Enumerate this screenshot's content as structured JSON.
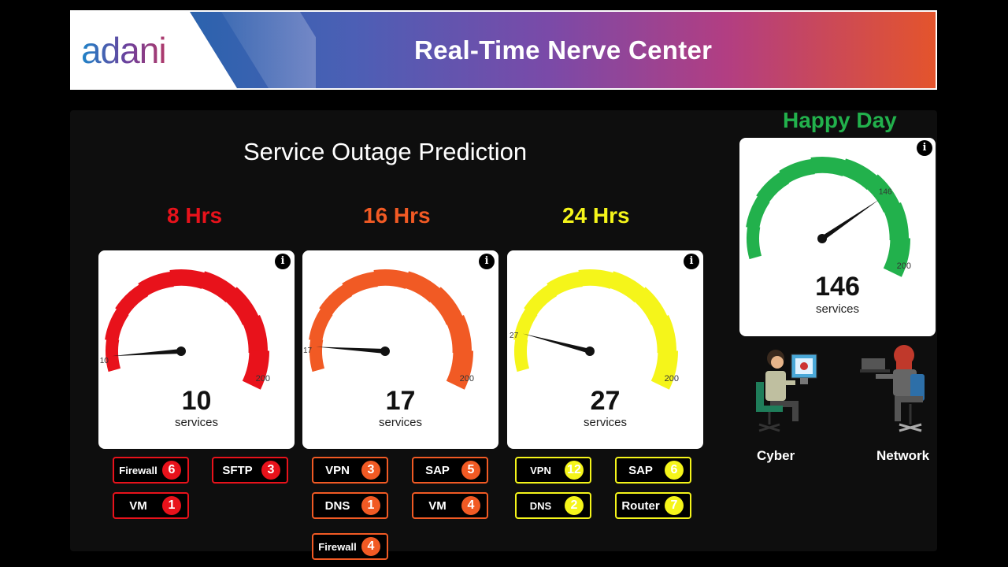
{
  "banner": {
    "logo": "adani",
    "title": "Real-Time Nerve Center"
  },
  "section_title": "Service Outage Prediction",
  "gauges": [
    {
      "horizon": "8 Hrs",
      "value": "10",
      "value_num": 10,
      "unit": "services",
      "min_label": "10",
      "max_label": "200",
      "max": 200,
      "color": "#e8121b"
    },
    {
      "horizon": "16 Hrs",
      "value": "17",
      "value_num": 17,
      "unit": "services",
      "min_label": "17",
      "max_label": "200",
      "max": 200,
      "color": "#f15a24"
    },
    {
      "horizon": "24 Hrs",
      "value": "27",
      "value_num": 27,
      "unit": "services",
      "min_label": "27",
      "max_label": "200",
      "max": 200,
      "color": "#f5f51a"
    }
  ],
  "chips": {
    "g8": [
      {
        "label": "Firewall",
        "count": "6"
      },
      {
        "label": "SFTP",
        "count": "3"
      },
      {
        "label": "VM",
        "count": "1"
      }
    ],
    "g16": [
      {
        "label": "VPN",
        "count": "3"
      },
      {
        "label": "SAP",
        "count": "5"
      },
      {
        "label": "DNS",
        "count": "1"
      },
      {
        "label": "VM",
        "count": "4"
      },
      {
        "label": "Firewall",
        "count": "4"
      }
    ],
    "g24": [
      {
        "label": "VPN",
        "count": "12"
      },
      {
        "label": "SAP",
        "count": "6"
      },
      {
        "label": "DNS",
        "count": "2"
      },
      {
        "label": "Router",
        "count": "7"
      }
    ]
  },
  "overall": {
    "status": "Happy Day",
    "value": "146",
    "value_num": 146,
    "unit": "services",
    "needle_label": "146",
    "max_label": "200",
    "max": 200,
    "color": "#22b14c"
  },
  "roles": {
    "cyber": "Cyber",
    "network": "Network"
  },
  "info_glyph": "i"
}
